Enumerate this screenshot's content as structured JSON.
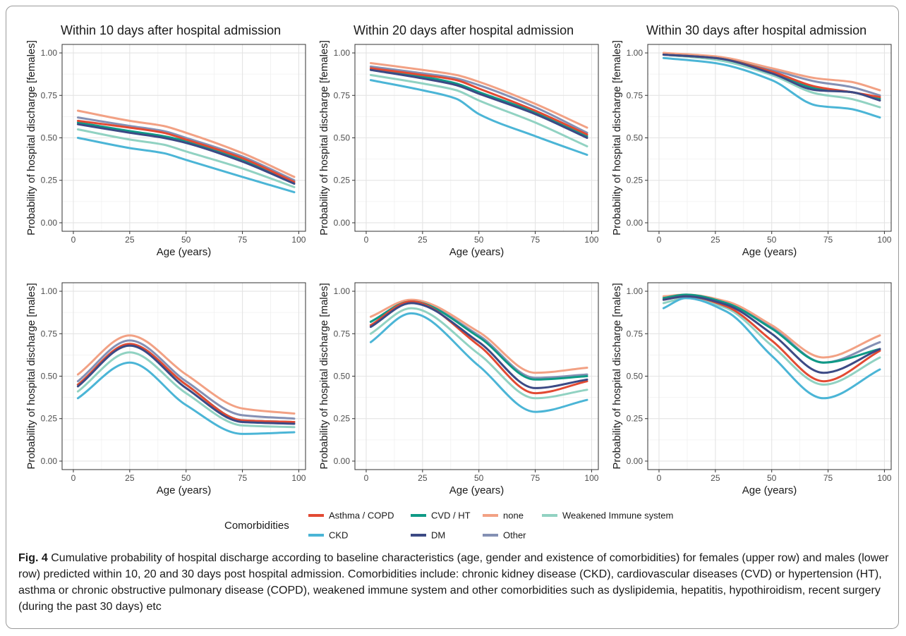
{
  "figure": {
    "label": "Fig. 4",
    "caption": "Cumulative probability of hospital discharge according to baseline characteristics (age, gender and existence of comorbidities) for females (upper row) and males (lower row) predicted within 10, 20 and 30 days post hospital admission. Comorbidities include: chronic kidney disease (CKD), cardiovascular diseases (CVD) or hypertension (HT), asthma or chronic obstructive pulmonary disease (COPD), weakened immune system and other comorbidities such as dyslipidemia, hepatitis, hypothiroidism, recent surgery (during the past 30 days) etc"
  },
  "legend": {
    "title": "Comorbidities",
    "placement": "bottom"
  },
  "series_colors": {
    "Asthma / COPD": "#e24a33",
    "CKD": "#4bb5d6",
    "CVD / HT": "#0f9a86",
    "DM": "#3c4a85",
    "none": "#f2a184",
    "Other": "#8490b4",
    "Weakened Immune system": "#91d2c2"
  },
  "chart_data": [
    {
      "type": "line",
      "title": "Within 10 days after hospital admission",
      "xlabel": "Age (years)",
      "ylabel": "Probability of hospital discharge [females]",
      "xlim": [
        -5,
        103
      ],
      "ylim": [
        -0.05,
        1.05
      ],
      "xticks": [
        "0",
        "25",
        "50",
        "75",
        "100"
      ],
      "yticks": [
        "0.00",
        "0.25",
        "0.50",
        "0.75",
        "1.00"
      ],
      "grid": true,
      "x": [
        2,
        25,
        40,
        50,
        75,
        98
      ],
      "series": [
        {
          "name": "Asthma / COPD",
          "values": [
            0.6,
            0.56,
            0.53,
            0.49,
            0.38,
            0.24
          ]
        },
        {
          "name": "CKD",
          "values": [
            0.5,
            0.44,
            0.41,
            0.37,
            0.27,
            0.18
          ]
        },
        {
          "name": "CVD / HT",
          "values": [
            0.59,
            0.54,
            0.51,
            0.48,
            0.37,
            0.24
          ]
        },
        {
          "name": "DM",
          "values": [
            0.58,
            0.53,
            0.5,
            0.47,
            0.36,
            0.23
          ]
        },
        {
          "name": "none",
          "values": [
            0.66,
            0.6,
            0.57,
            0.53,
            0.41,
            0.27
          ]
        },
        {
          "name": "Other",
          "values": [
            0.62,
            0.57,
            0.54,
            0.5,
            0.39,
            0.25
          ]
        },
        {
          "name": "Weakened Immune system",
          "values": [
            0.55,
            0.49,
            0.46,
            0.42,
            0.32,
            0.21
          ]
        }
      ]
    },
    {
      "type": "line",
      "title": "Within 20 days after hospital admission",
      "xlabel": "Age (years)",
      "ylabel": "Probability of hospital discharge [females]",
      "xlim": [
        -5,
        103
      ],
      "ylim": [
        -0.05,
        1.05
      ],
      "xticks": [
        "0",
        "25",
        "50",
        "75",
        "100"
      ],
      "yticks": [
        "0.00",
        "0.25",
        "0.50",
        "0.75",
        "1.00"
      ],
      "grid": true,
      "x": [
        2,
        25,
        40,
        50,
        75,
        98
      ],
      "series": [
        {
          "name": "Asthma / COPD",
          "values": [
            0.91,
            0.87,
            0.84,
            0.79,
            0.66,
            0.52
          ]
        },
        {
          "name": "CKD",
          "values": [
            0.84,
            0.78,
            0.73,
            0.64,
            0.51,
            0.4
          ]
        },
        {
          "name": "CVD / HT",
          "values": [
            0.9,
            0.86,
            0.82,
            0.77,
            0.65,
            0.51
          ]
        },
        {
          "name": "DM",
          "values": [
            0.9,
            0.85,
            0.81,
            0.76,
            0.64,
            0.5
          ]
        },
        {
          "name": "none",
          "values": [
            0.94,
            0.9,
            0.87,
            0.83,
            0.7,
            0.56
          ]
        },
        {
          "name": "Other",
          "values": [
            0.92,
            0.88,
            0.85,
            0.81,
            0.68,
            0.53
          ]
        },
        {
          "name": "Weakened Immune system",
          "values": [
            0.87,
            0.82,
            0.78,
            0.72,
            0.59,
            0.45
          ]
        }
      ]
    },
    {
      "type": "line",
      "title": "Within 30 days after hospital admission",
      "xlabel": "Age (years)",
      "ylabel": "Probability of hospital discharge [females]",
      "xlim": [
        -5,
        103
      ],
      "ylim": [
        -0.05,
        1.05
      ],
      "xticks": [
        "0",
        "25",
        "50",
        "75",
        "100"
      ],
      "yticks": [
        "0.00",
        "0.25",
        "0.50",
        "0.75",
        "1.00"
      ],
      "grid": true,
      "x": [
        2,
        25,
        50,
        70,
        85,
        98
      ],
      "series": [
        {
          "name": "Asthma / COPD",
          "values": [
            0.99,
            0.97,
            0.89,
            0.8,
            0.77,
            0.74
          ]
        },
        {
          "name": "CKD",
          "values": [
            0.97,
            0.94,
            0.84,
            0.69,
            0.67,
            0.62
          ]
        },
        {
          "name": "CVD / HT",
          "values": [
            0.99,
            0.97,
            0.89,
            0.79,
            0.77,
            0.73
          ]
        },
        {
          "name": "DM",
          "values": [
            0.99,
            0.97,
            0.88,
            0.78,
            0.77,
            0.72
          ]
        },
        {
          "name": "none",
          "values": [
            1.0,
            0.98,
            0.91,
            0.85,
            0.83,
            0.78
          ]
        },
        {
          "name": "Other",
          "values": [
            0.99,
            0.97,
            0.9,
            0.83,
            0.8,
            0.75
          ]
        },
        {
          "name": "Weakened Immune system",
          "values": [
            0.99,
            0.96,
            0.87,
            0.76,
            0.73,
            0.68
          ]
        }
      ]
    },
    {
      "type": "line",
      "title": "",
      "xlabel": "Age (years)",
      "ylabel": "Probability of hospital discharge [males]",
      "xlim": [
        -5,
        103
      ],
      "ylim": [
        -0.05,
        1.05
      ],
      "xticks": [
        "0",
        "25",
        "50",
        "75",
        "100"
      ],
      "yticks": [
        "0.00",
        "0.25",
        "0.50",
        "0.75",
        "1.00"
      ],
      "grid": true,
      "x": [
        2,
        25,
        50,
        75,
        98
      ],
      "series": [
        {
          "name": "Asthma / COPD",
          "values": [
            0.45,
            0.69,
            0.45,
            0.24,
            0.23
          ]
        },
        {
          "name": "CKD",
          "values": [
            0.37,
            0.58,
            0.33,
            0.16,
            0.17
          ]
        },
        {
          "name": "CVD / HT",
          "values": [
            0.45,
            0.68,
            0.45,
            0.24,
            0.23
          ]
        },
        {
          "name": "DM",
          "values": [
            0.44,
            0.68,
            0.43,
            0.23,
            0.22
          ]
        },
        {
          "name": "none",
          "values": [
            0.51,
            0.74,
            0.51,
            0.31,
            0.28
          ]
        },
        {
          "name": "Other",
          "values": [
            0.47,
            0.71,
            0.47,
            0.27,
            0.25
          ]
        },
        {
          "name": "Weakened Immune system",
          "values": [
            0.41,
            0.64,
            0.4,
            0.21,
            0.2
          ]
        }
      ]
    },
    {
      "type": "line",
      "title": "",
      "xlabel": "Age (years)",
      "ylabel": "Probability of hospital discharge [males]",
      "xlim": [
        -5,
        103
      ],
      "ylim": [
        -0.05,
        1.05
      ],
      "xticks": [
        "0",
        "25",
        "50",
        "75",
        "100"
      ],
      "yticks": [
        "0.00",
        "0.25",
        "0.50",
        "0.75",
        "1.00"
      ],
      "grid": true,
      "x": [
        2,
        20,
        50,
        75,
        98
      ],
      "series": [
        {
          "name": "Asthma / COPD",
          "values": [
            0.8,
            0.94,
            0.68,
            0.4,
            0.47
          ]
        },
        {
          "name": "CKD",
          "values": [
            0.7,
            0.87,
            0.56,
            0.29,
            0.36
          ]
        },
        {
          "name": "CVD / HT",
          "values": [
            0.82,
            0.94,
            0.73,
            0.48,
            0.5
          ]
        },
        {
          "name": "DM",
          "values": [
            0.79,
            0.93,
            0.7,
            0.43,
            0.48
          ]
        },
        {
          "name": "none",
          "values": [
            0.85,
            0.95,
            0.76,
            0.52,
            0.55
          ]
        },
        {
          "name": "Other",
          "values": [
            0.82,
            0.94,
            0.74,
            0.49,
            0.51
          ]
        },
        {
          "name": "Weakened Immune system",
          "values": [
            0.75,
            0.9,
            0.63,
            0.37,
            0.42
          ]
        }
      ]
    },
    {
      "type": "line",
      "title": "",
      "xlabel": "Age (years)",
      "ylabel": "Probability of hospital discharge [males]",
      "xlim": [
        -5,
        103
      ],
      "ylim": [
        -0.05,
        1.05
      ],
      "xticks": [
        "0",
        "25",
        "50",
        "75",
        "100"
      ],
      "yticks": [
        "0.00",
        "0.25",
        "0.50",
        "0.75",
        "1.00"
      ],
      "grid": true,
      "x": [
        2,
        12,
        30,
        50,
        73,
        98
      ],
      "series": [
        {
          "name": "Asthma / COPD",
          "values": [
            0.95,
            0.97,
            0.91,
            0.71,
            0.47,
            0.65
          ]
        },
        {
          "name": "CKD",
          "values": [
            0.9,
            0.96,
            0.88,
            0.62,
            0.37,
            0.54
          ]
        },
        {
          "name": "CVD / HT",
          "values": [
            0.96,
            0.98,
            0.93,
            0.78,
            0.58,
            0.66
          ]
        },
        {
          "name": "DM",
          "values": [
            0.95,
            0.97,
            0.92,
            0.75,
            0.52,
            0.66
          ]
        },
        {
          "name": "none",
          "values": [
            0.97,
            0.98,
            0.94,
            0.8,
            0.61,
            0.74
          ]
        },
        {
          "name": "Other",
          "values": [
            0.96,
            0.97,
            0.93,
            0.79,
            0.58,
            0.7
          ]
        },
        {
          "name": "Weakened Immune system",
          "values": [
            0.93,
            0.96,
            0.9,
            0.68,
            0.45,
            0.61
          ]
        }
      ]
    }
  ]
}
